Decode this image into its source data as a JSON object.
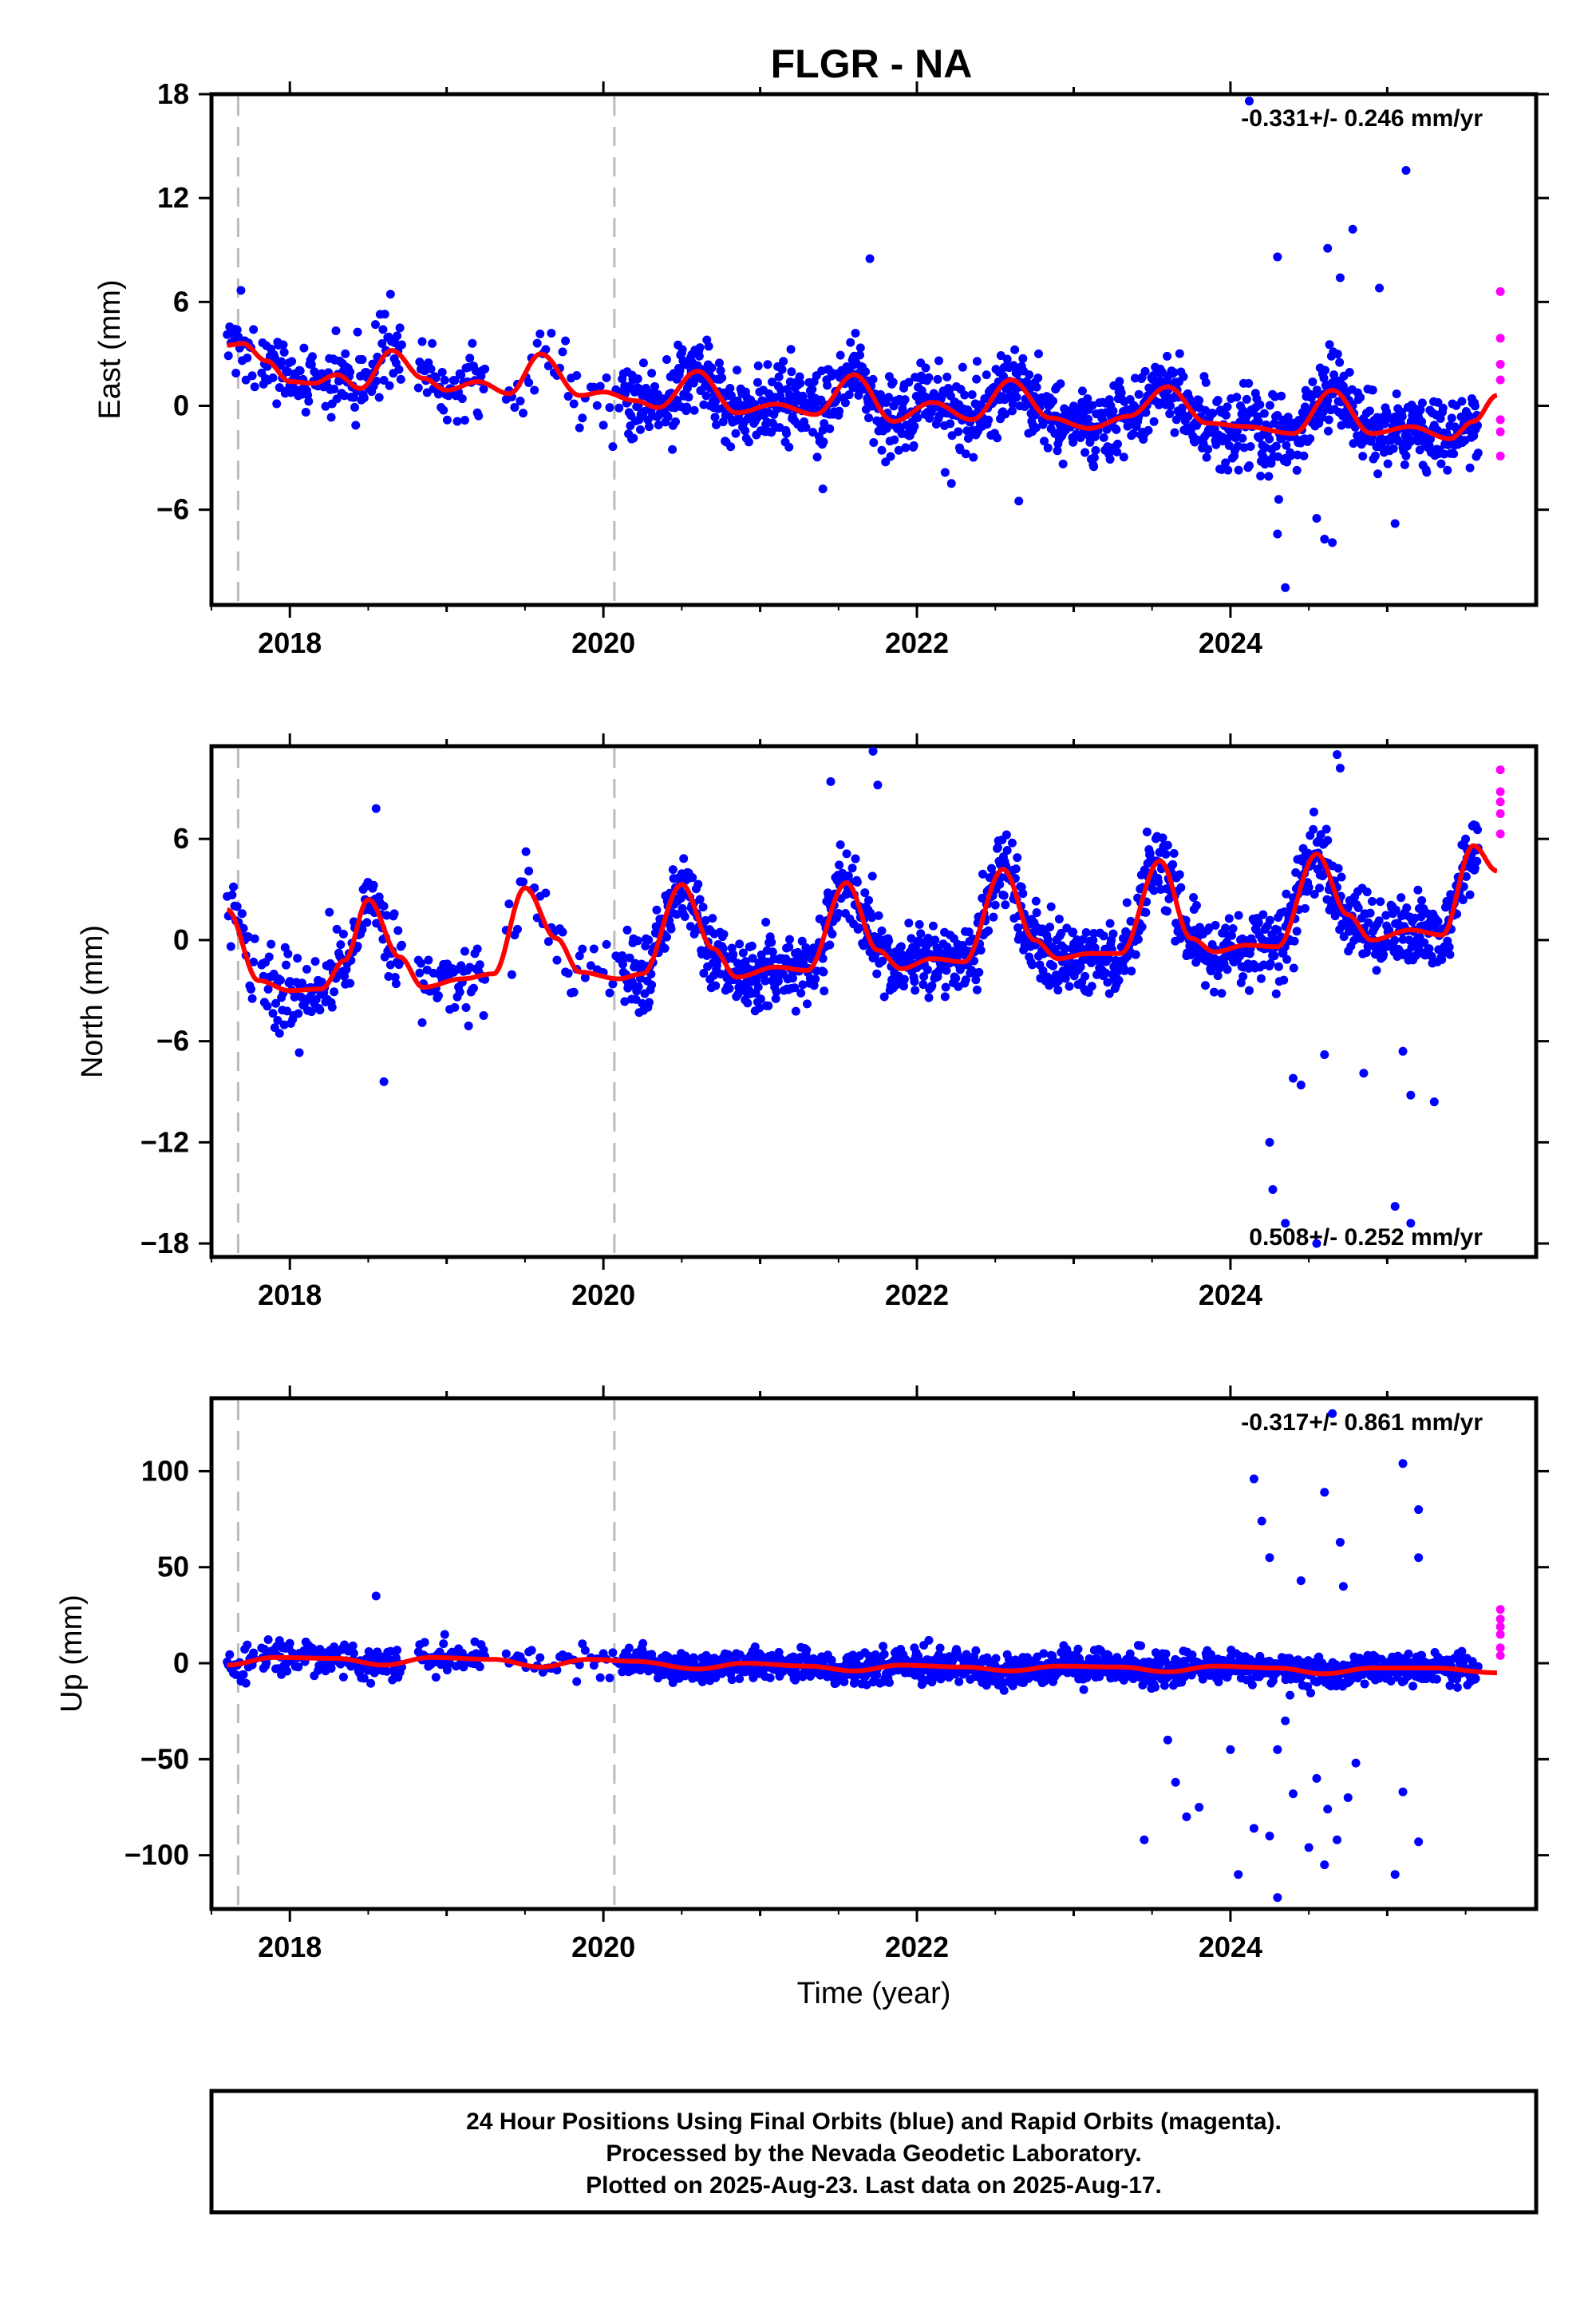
{
  "title": "FLGR - NA",
  "colors": {
    "final": "#0000ff",
    "rapid": "#ff00ff",
    "model": "#ff0000",
    "event": "#bbbbbb",
    "frame": "#000000"
  },
  "xlabel": "Time (year)",
  "xticks": [
    "2018",
    "2020",
    "2022",
    "2024"
  ],
  "note": {
    "line1": "24 Hour Positions Using Final Orbits (blue) and Rapid Orbits (magenta).",
    "line2": "Processed by the Nevada Geodetic Laboratory.",
    "line3": "Plotted on 2025-Aug-23. Last data on 2025-Aug-17."
  },
  "chart_data": [
    {
      "type": "scatter",
      "ylabel": "East (mm)",
      "rate": "-0.331+/- 0.246 mm/yr",
      "rate_position": "top-right",
      "xlim": [
        2017.5,
        2025.95
      ],
      "ylim": [
        -11.5,
        18
      ],
      "yticks": [
        18,
        12,
        6,
        0,
        -6
      ],
      "ytick_labels": [
        "18",
        "12",
        "6",
        "0",
        "−6"
      ],
      "event_lines": [
        2017.67,
        2020.07
      ],
      "trend": {
        "start": 1.0,
        "slope": -0.331
      },
      "seasonal": [
        {
          "t": 2017.6,
          "y": 3.5
        },
        {
          "t": 2017.7,
          "y": 3.6
        },
        {
          "t": 2017.85,
          "y": 2.6
        },
        {
          "t": 2018.0,
          "y": 1.4
        },
        {
          "t": 2018.15,
          "y": 1.3
        },
        {
          "t": 2018.3,
          "y": 1.8
        },
        {
          "t": 2018.45,
          "y": 1.0
        },
        {
          "t": 2018.65,
          "y": 3.2
        },
        {
          "t": 2018.85,
          "y": 1.6
        },
        {
          "t": 2019.0,
          "y": 0.9
        },
        {
          "t": 2019.2,
          "y": 1.4
        },
        {
          "t": 2019.4,
          "y": 0.7
        },
        {
          "t": 2019.6,
          "y": 3.0
        },
        {
          "t": 2019.85,
          "y": 0.6
        },
        {
          "t": 2020.0,
          "y": 0.8
        },
        {
          "t": 2020.2,
          "y": 0.3
        },
        {
          "t": 2020.35,
          "y": -0.1
        },
        {
          "t": 2020.6,
          "y": 2.0
        },
        {
          "t": 2020.85,
          "y": -0.4
        },
        {
          "t": 2021.1,
          "y": 0.1
        },
        {
          "t": 2021.35,
          "y": -0.5
        },
        {
          "t": 2021.6,
          "y": 1.8
        },
        {
          "t": 2021.85,
          "y": -0.9
        },
        {
          "t": 2022.1,
          "y": 0.2
        },
        {
          "t": 2022.35,
          "y": -0.8
        },
        {
          "t": 2022.6,
          "y": 1.5
        },
        {
          "t": 2022.85,
          "y": -0.7
        },
        {
          "t": 2023.1,
          "y": -1.3
        },
        {
          "t": 2023.35,
          "y": -0.6
        },
        {
          "t": 2023.6,
          "y": 1.1
        },
        {
          "t": 2023.85,
          "y": -1.0
        },
        {
          "t": 2024.1,
          "y": -1.2
        },
        {
          "t": 2024.4,
          "y": -1.6
        },
        {
          "t": 2024.65,
          "y": 0.9
        },
        {
          "t": 2024.9,
          "y": -1.6
        },
        {
          "t": 2025.15,
          "y": -1.2
        },
        {
          "t": 2025.4,
          "y": -1.9
        },
        {
          "t": 2025.55,
          "y": -0.9
        },
        {
          "t": 2025.7,
          "y": 0.6
        }
      ],
      "noise_sd": 1.1,
      "outliers_final": [
        [
          2024.12,
          17.6
        ],
        [
          2025.12,
          13.6
        ],
        [
          2024.78,
          10.2
        ],
        [
          2024.62,
          9.1
        ],
        [
          2024.3,
          8.6
        ],
        [
          2021.7,
          8.5
        ],
        [
          2024.7,
          7.4
        ],
        [
          2024.65,
          -7.9
        ],
        [
          2024.6,
          -7.7
        ],
        [
          2024.35,
          -10.5
        ],
        [
          2024.3,
          -7.4
        ],
        [
          2025.05,
          -6.8
        ],
        [
          2022.65,
          -5.5
        ],
        [
          2021.4,
          -4.8
        ],
        [
          2024.55,
          -6.5
        ],
        [
          2024.95,
          6.8
        ]
      ],
      "rapid": [
        [
          2025.62,
          6.6
        ],
        [
          2025.62,
          3.9
        ],
        [
          2025.62,
          2.4
        ],
        [
          2025.62,
          1.5
        ],
        [
          2025.62,
          -0.8
        ],
        [
          2025.62,
          -1.5
        ],
        [
          2025.62,
          -2.9
        ]
      ]
    },
    {
      "type": "scatter",
      "ylabel": "North (mm)",
      "rate": "0.508+/- 0.252 mm/yr",
      "rate_position": "bottom-right",
      "xlim": [
        2017.5,
        2025.95
      ],
      "ylim": [
        -18.8,
        11.5
      ],
      "yticks": [
        6,
        0,
        -6,
        -12,
        -18
      ],
      "ytick_labels": [
        "6",
        "0",
        "−6",
        "−12",
        "−18"
      ],
      "event_lines": [
        2017.67,
        2020.07
      ],
      "trend": {
        "start": -2.0,
        "slope": 0.508
      },
      "seasonal": [
        {
          "t": 2017.6,
          "y": 1.8
        },
        {
          "t": 2017.8,
          "y": -2.4
        },
        {
          "t": 2018.0,
          "y": -3.0
        },
        {
          "t": 2018.2,
          "y": -2.9
        },
        {
          "t": 2018.35,
          "y": -1.2
        },
        {
          "t": 2018.5,
          "y": 2.4
        },
        {
          "t": 2018.7,
          "y": -1.0
        },
        {
          "t": 2018.85,
          "y": -2.8
        },
        {
          "t": 2019.1,
          "y": -2.3
        },
        {
          "t": 2019.3,
          "y": -2.0
        },
        {
          "t": 2019.5,
          "y": 3.1
        },
        {
          "t": 2019.7,
          "y": 0.1
        },
        {
          "t": 2019.85,
          "y": -1.9
        },
        {
          "t": 2020.1,
          "y": -2.3
        },
        {
          "t": 2020.25,
          "y": -2.0
        },
        {
          "t": 2020.5,
          "y": 3.3
        },
        {
          "t": 2020.7,
          "y": -0.5
        },
        {
          "t": 2020.85,
          "y": -2.2
        },
        {
          "t": 2021.1,
          "y": -1.6
        },
        {
          "t": 2021.3,
          "y": -1.8
        },
        {
          "t": 2021.55,
          "y": 3.4
        },
        {
          "t": 2021.75,
          "y": -0.6
        },
        {
          "t": 2021.9,
          "y": -1.7
        },
        {
          "t": 2022.1,
          "y": -1.1
        },
        {
          "t": 2022.3,
          "y": -1.3
        },
        {
          "t": 2022.55,
          "y": 4.2
        },
        {
          "t": 2022.75,
          "y": 0.0
        },
        {
          "t": 2022.9,
          "y": -1.1
        },
        {
          "t": 2023.1,
          "y": -0.8
        },
        {
          "t": 2023.3,
          "y": -0.8
        },
        {
          "t": 2023.55,
          "y": 4.7
        },
        {
          "t": 2023.75,
          "y": 0.1
        },
        {
          "t": 2023.9,
          "y": -0.7
        },
        {
          "t": 2024.1,
          "y": -0.3
        },
        {
          "t": 2024.3,
          "y": -0.4
        },
        {
          "t": 2024.55,
          "y": 5.1
        },
        {
          "t": 2024.75,
          "y": 1.5
        },
        {
          "t": 2024.9,
          "y": 0.0
        },
        {
          "t": 2025.15,
          "y": 0.6
        },
        {
          "t": 2025.35,
          "y": 0.3
        },
        {
          "t": 2025.55,
          "y": 5.6
        },
        {
          "t": 2025.7,
          "y": 4.1
        }
      ],
      "noise_sd": 1.1,
      "outliers_final": [
        [
          2021.72,
          11.2
        ],
        [
          2021.45,
          9.4
        ],
        [
          2021.75,
          9.2
        ],
        [
          2024.68,
          11.0
        ],
        [
          2024.7,
          10.2
        ],
        [
          2018.55,
          7.8
        ],
        [
          2024.25,
          -12.0
        ],
        [
          2024.27,
          -14.8
        ],
        [
          2024.35,
          -16.8
        ],
        [
          2024.4,
          -8.2
        ],
        [
          2024.45,
          -8.6
        ],
        [
          2024.85,
          -7.9
        ],
        [
          2025.05,
          -15.8
        ],
        [
          2025.15,
          -16.8
        ],
        [
          2025.15,
          -9.2
        ],
        [
          2025.3,
          -9.6
        ],
        [
          2018.6,
          -8.4
        ],
        [
          2024.55,
          -18.0
        ],
        [
          2024.6,
          -6.8
        ],
        [
          2025.1,
          -6.6
        ]
      ],
      "rapid": [
        [
          2025.62,
          10.1
        ],
        [
          2025.62,
          8.8
        ],
        [
          2025.62,
          8.2
        ],
        [
          2025.62,
          7.5
        ],
        [
          2025.62,
          6.3
        ]
      ]
    },
    {
      "type": "scatter",
      "ylabel": "Up (mm)",
      "rate": "-0.317+/- 0.861 mm/yr",
      "rate_position": "top-right",
      "xlim": [
        2017.5,
        2025.95
      ],
      "ylim": [
        -128,
        138
      ],
      "yticks": [
        100,
        50,
        0,
        -50,
        -100
      ],
      "ytick_labels": [
        "100",
        "50",
        "0",
        "−50",
        "−100"
      ],
      "event_lines": [
        2017.67,
        2020.07
      ],
      "trend": {
        "start": 2.0,
        "slope": -0.317
      },
      "seasonal": [
        {
          "t": 2017.6,
          "y": -1.0
        },
        {
          "t": 2017.9,
          "y": 3.0
        },
        {
          "t": 2018.3,
          "y": 2.5
        },
        {
          "t": 2018.6,
          "y": -1.0
        },
        {
          "t": 2018.9,
          "y": 3.0
        },
        {
          "t": 2019.3,
          "y": 2.0
        },
        {
          "t": 2019.6,
          "y": -2.0
        },
        {
          "t": 2019.9,
          "y": 2.0
        },
        {
          "t": 2020.2,
          "y": 1.0
        },
        {
          "t": 2020.6,
          "y": -3.0
        },
        {
          "t": 2020.9,
          "y": 0.0
        },
        {
          "t": 2021.3,
          "y": -1.5
        },
        {
          "t": 2021.6,
          "y": -4.0
        },
        {
          "t": 2021.9,
          "y": -1.0
        },
        {
          "t": 2022.3,
          "y": -2.0
        },
        {
          "t": 2022.6,
          "y": -4.0
        },
        {
          "t": 2022.9,
          "y": -1.5
        },
        {
          "t": 2023.3,
          "y": -2.0
        },
        {
          "t": 2023.6,
          "y": -4.5
        },
        {
          "t": 2023.9,
          "y": -1.5
        },
        {
          "t": 2024.3,
          "y": -2.5
        },
        {
          "t": 2024.6,
          "y": -5.5
        },
        {
          "t": 2024.9,
          "y": -2.5
        },
        {
          "t": 2025.3,
          "y": -2.5
        },
        {
          "t": 2025.7,
          "y": -5.0
        }
      ],
      "noise_sd": 4.0,
      "outliers_final": [
        [
          2024.65,
          130
        ],
        [
          2024.6,
          89
        ],
        [
          2024.15,
          96
        ],
        [
          2024.2,
          74
        ],
        [
          2025.1,
          104
        ],
        [
          2025.2,
          80
        ],
        [
          2024.25,
          55
        ],
        [
          2024.45,
          43
        ],
        [
          2024.7,
          63
        ],
        [
          2024.72,
          40
        ],
        [
          2025.2,
          55
        ],
        [
          2018.55,
          35
        ],
        [
          2023.45,
          -92
        ],
        [
          2023.6,
          -40
        ],
        [
          2023.65,
          -62
        ],
        [
          2023.72,
          -80
        ],
        [
          2024.0,
          -45
        ],
        [
          2024.05,
          -110
        ],
        [
          2024.15,
          -86
        ],
        [
          2024.25,
          -90
        ],
        [
          2024.3,
          -122
        ],
        [
          2024.4,
          -68
        ],
        [
          2024.5,
          -96
        ],
        [
          2024.55,
          -60
        ],
        [
          2024.62,
          -76
        ],
        [
          2024.68,
          -92
        ],
        [
          2024.75,
          -70
        ],
        [
          2024.8,
          -52
        ],
        [
          2025.05,
          -110
        ],
        [
          2025.1,
          -67
        ],
        [
          2025.2,
          -93
        ],
        [
          2024.3,
          -45
        ],
        [
          2024.6,
          -105
        ],
        [
          2023.8,
          -75
        ],
        [
          2024.35,
          -30
        ]
      ],
      "rapid": [
        [
          2025.62,
          28
        ],
        [
          2025.62,
          23
        ],
        [
          2025.62,
          19
        ],
        [
          2025.62,
          15
        ],
        [
          2025.62,
          8
        ],
        [
          2025.62,
          4
        ]
      ]
    }
  ]
}
